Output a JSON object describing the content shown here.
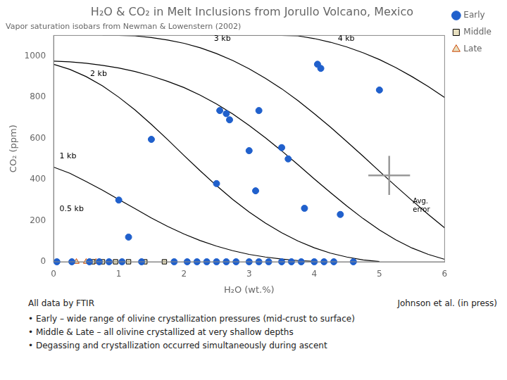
{
  "chart_data": {
    "type": "scatter",
    "title": "H₂O & CO₂ in Melt Inclusions from Jorullo Volcano, Mexico",
    "subtitle": "Vapor saturation isobars from Newman & Lowenstern (2002)",
    "xlabel": "H₂O (wt.%)",
    "ylabel": "CO₂ (ppm)",
    "xlim": [
      0,
      6
    ],
    "ylim": [
      0,
      1100
    ],
    "xticks": [
      0,
      1,
      2,
      3,
      4,
      5,
      6
    ],
    "yticks": [
      0,
      200,
      400,
      600,
      800,
      1000
    ],
    "grid": false,
    "legend": "right",
    "series": [
      {
        "name": "Early",
        "type": "scatter",
        "marker": "circle",
        "color": "#2060CC",
        "x": [
          0.05,
          0.28,
          0.55,
          0.7,
          0.85,
          1.05,
          1.35,
          1.85,
          2.05,
          2.2,
          2.35,
          2.5,
          2.65,
          2.8,
          3.0,
          3.15,
          3.3,
          3.5,
          3.65,
          3.8,
          4.0,
          4.15,
          4.3,
          4.6,
          1.15,
          1.0,
          1.5,
          2.5,
          2.55,
          2.65,
          2.7,
          3.0,
          3.1,
          3.15,
          3.5,
          3.6,
          3.85,
          4.05,
          4.1,
          4.4,
          5.0
        ],
        "values": [
          0,
          0,
          0,
          0,
          0,
          0,
          0,
          0,
          0,
          0,
          0,
          0,
          0,
          0,
          0,
          0,
          0,
          0,
          0,
          0,
          0,
          0,
          0,
          0,
          120,
          300,
          595,
          380,
          735,
          720,
          690,
          540,
          345,
          735,
          555,
          500,
          260,
          960,
          940,
          230,
          835
        ]
      },
      {
        "name": "Middle",
        "type": "scatter",
        "marker": "square",
        "color": "#E8E0C0",
        "edge_color": "black",
        "x": [
          0.6,
          0.75,
          0.95,
          1.15,
          1.4,
          1.7
        ],
        "values": [
          0,
          0,
          0,
          0,
          0,
          0
        ]
      },
      {
        "name": "Late",
        "type": "scatter",
        "marker": "triangle",
        "color": "#E8E0C0",
        "edge_color": "#CC4400",
        "x": [
          0.35,
          0.5,
          0.65
        ],
        "values": [
          0,
          0,
          0
        ]
      },
      {
        "type": "line",
        "color": "black",
        "x": [
          0,
          0.25,
          0.5,
          0.75,
          1.0,
          1.25,
          1.5,
          1.75,
          2.0,
          2.25,
          2.5,
          2.75,
          3.0,
          3.25,
          3.5,
          3.75,
          4.0
        ],
        "values": [
          460,
          430,
          390,
          348,
          303,
          258,
          213,
          172,
          135,
          103,
          76,
          54,
          36,
          23,
          13,
          6,
          2
        ]
      },
      {
        "type": "line",
        "color": "black",
        "x": [
          0,
          0.25,
          0.5,
          0.75,
          1.0,
          1.25,
          1.5,
          1.75,
          2.0,
          2.25,
          2.5,
          2.75,
          3.0,
          3.25,
          3.5,
          3.75,
          4.0,
          4.25,
          4.5,
          4.75,
          5.0
        ],
        "values": [
          960,
          935,
          900,
          855,
          800,
          738,
          668,
          594,
          517,
          442,
          370,
          303,
          242,
          188,
          141,
          101,
          68,
          42,
          23,
          9,
          1
        ]
      },
      {
        "type": "line",
        "color": "black",
        "x": [
          0,
          0.25,
          0.5,
          0.75,
          1.0,
          1.25,
          1.5,
          1.75,
          2.0,
          2.25,
          2.5,
          2.75,
          3.0,
          3.25,
          3.5,
          3.75,
          4.0,
          4.25,
          4.5,
          4.75,
          5.0,
          5.25,
          5.5,
          5.75,
          6.0
        ],
        "values": [
          975,
          972,
          965,
          955,
          942,
          925,
          903,
          877,
          847,
          810,
          767,
          718,
          663,
          603,
          539,
          472,
          403,
          336,
          271,
          210,
          155,
          107,
          67,
          36,
          12
        ]
      },
      {
        "type": "line",
        "color": "black",
        "x": [
          0.75,
          1.0,
          1.25,
          1.5,
          1.75,
          2.0,
          2.25,
          2.5,
          2.75,
          3.0,
          3.25,
          3.5,
          3.75,
          4.0,
          4.25,
          4.5,
          4.75,
          5.0,
          5.25,
          5.5,
          5.75,
          6.0
        ],
        "values": [
          1100,
          1100,
          1098,
          1090,
          1078,
          1062,
          1040,
          1012,
          978,
          938,
          892,
          841,
          783,
          720,
          654,
          584,
          513,
          440,
          368,
          298,
          230,
          165
        ]
      },
      {
        "type": "line",
        "color": "black",
        "x": [
          2.25,
          2.5,
          2.75,
          3.0,
          3.25,
          3.5,
          3.75,
          4.0,
          4.25,
          4.5,
          4.75,
          5.0,
          5.25,
          5.5,
          5.75,
          6.0
        ],
        "values": [
          1100,
          1100,
          1100,
          1100,
          1100,
          1100,
          1098,
          1085,
          1067,
          1044,
          1016,
          983,
          944,
          900,
          852,
          799
        ]
      }
    ],
    "annotations": [
      {
        "text": "0.5 kb",
        "x": 0.08,
        "y": 235
      },
      {
        "text": "1 kb",
        "x": 0.08,
        "y": 490
      },
      {
        "text": "2 kb",
        "x": 0.55,
        "y": 890
      },
      {
        "text": "3 kb",
        "x": 2.45,
        "y": 1060
      },
      {
        "text": "4 kb",
        "x": 4.35,
        "y": 1063
      }
    ],
    "error_cross": {
      "x": 5.15,
      "y": 420,
      "x_error": 0.32,
      "y_error": 95,
      "color": "#999999",
      "label": "Avg.\nerror"
    },
    "citation": "Johnson et al. (in press)",
    "note": "All data by FTIR",
    "bullet_points": [
      "• Early – wide range of olivine crystallization pressures (mid-crust to surface)",
      "• Middle & Late – all olivine crystallized at very shallow depths",
      "• Degassing and crystallization occurred simultaneously during ascent"
    ]
  }
}
